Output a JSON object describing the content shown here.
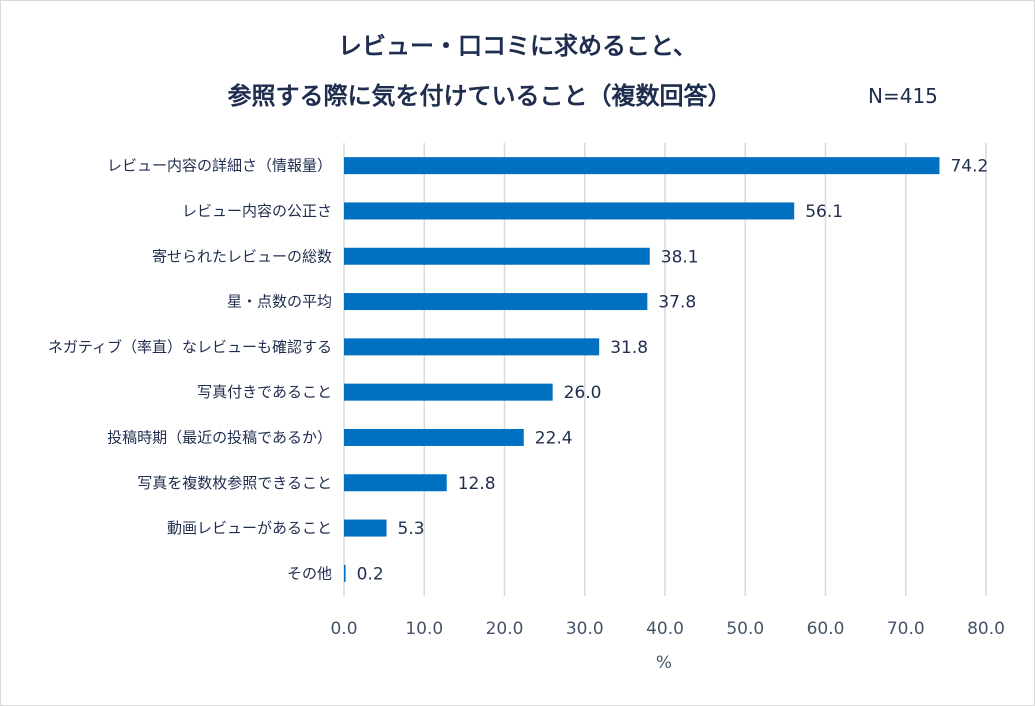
{
  "chart_data": {
    "type": "bar",
    "orientation": "horizontal",
    "title_line1": "レビュー・口コミに求めること、",
    "title_line2": "参照する際に気を付けていること（複数回答）",
    "sample_size": "N=415",
    "categories": [
      "レビュー内容の詳細さ（情報量）",
      "レビュー内容の公正さ",
      "寄せられたレビューの総数",
      "星・点数の平均",
      "ネガティブ（率直）なレビューも確認する",
      "写真付きであること",
      "投稿時期（最近の投稿であるか）",
      "写真を複数枚参照できること",
      "動画レビューがあること",
      "その他"
    ],
    "values": [
      74.2,
      56.1,
      38.1,
      37.8,
      31.8,
      26.0,
      22.4,
      12.8,
      5.3,
      0.2
    ],
    "value_labels": [
      "74.2",
      "56.1",
      "38.1",
      "37.8",
      "31.8",
      "26.0",
      "22.4",
      "12.8",
      "5.3",
      "0.2"
    ],
    "xlim": [
      0,
      80
    ],
    "xticks": [
      "0.0",
      "10.0",
      "20.0",
      "30.0",
      "40.0",
      "50.0",
      "60.0",
      "70.0",
      "80.0"
    ],
    "xlabel": "%",
    "grid": true,
    "bar_color": "#0070c0"
  }
}
